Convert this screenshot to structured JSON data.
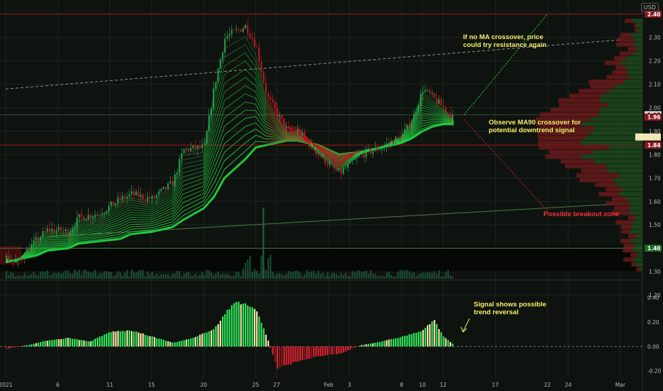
{
  "currency": "USD",
  "colors": {
    "background": "#0f130f",
    "grid": "#1d251d",
    "text": "#b8bcb8",
    "bull": "#2ee65a",
    "bear": "#d8222f",
    "ribbon_green": "#22d040",
    "ribbon_red": "#c0101c",
    "support": "#7a1618",
    "volume": "#1f5a3a",
    "annotation_yellow": "#f6ef6a",
    "annotation_red": "#ff2f3a",
    "hist_pale": "#f4e6a6"
  },
  "annotations": {
    "resistance": "If no MA crossover, price\ncould try resistance again",
    "ma90": "Observe MA90 crossover for\npotential downtrend signal",
    "breakout": "Possible breakout zone",
    "signal": "Signal shows possible\ntrend reversal"
  },
  "price_scale_labels": [
    "2.40",
    "2.30",
    "2.20",
    "2.10",
    "2.00",
    "1.90",
    "1.80",
    "1.70",
    "1.60",
    "1.50",
    "1.40",
    "1.30",
    "1.20"
  ],
  "price_markers": [
    {
      "value": 2.4,
      "label": "2.40",
      "style": "red"
    },
    {
      "value": 1.97,
      "label": "1.97",
      "style": "neutral"
    },
    {
      "value": 1.96,
      "label": "1.96",
      "style": "red"
    },
    {
      "value": 1.84,
      "label": "1.84",
      "style": "red"
    },
    {
      "value": 1.4,
      "label": "1.40",
      "style": "green"
    }
  ],
  "oscillator_scale_labels": [
    "0.40",
    "0.20",
    "0.00",
    "-0.20"
  ],
  "time_labels": [
    {
      "date": "2021-01-01",
      "label": "2021"
    },
    {
      "date": "2021-01-06",
      "label": "6"
    },
    {
      "date": "2021-01-11",
      "label": "11"
    },
    {
      "date": "2021-01-15",
      "label": "15"
    },
    {
      "date": "2021-01-20",
      "label": "20"
    },
    {
      "date": "2021-01-25",
      "label": "25"
    },
    {
      "date": "2021-01-27",
      "label": "27"
    },
    {
      "date": "2021-02-01",
      "label": "Feb"
    },
    {
      "date": "2021-02-03",
      "label": "3"
    },
    {
      "date": "2021-02-08",
      "label": "8"
    },
    {
      "date": "2021-02-10",
      "label": "10"
    },
    {
      "date": "2021-02-12",
      "label": "12"
    },
    {
      "date": "2021-02-17",
      "label": "17"
    },
    {
      "date": "2021-02-22",
      "label": "22"
    },
    {
      "date": "2021-02-24",
      "label": "24"
    },
    {
      "date": "2021-03-01",
      "label": "Mar"
    }
  ],
  "chart_data": [
    {
      "type": "line",
      "title": "",
      "ylabel": "",
      "ylim": [
        1.27,
        2.46
      ],
      "xlim": [
        "2021-01-01",
        "2021-03-01"
      ],
      "x": [
        "2021-01-01",
        "2021-01-02",
        "2021-01-04",
        "2021-01-05",
        "2021-01-07",
        "2021-01-08",
        "2021-01-10",
        "2021-01-12",
        "2021-01-13",
        "2021-01-15",
        "2021-01-17",
        "2021-01-18",
        "2021-01-20",
        "2021-01-21",
        "2021-01-22",
        "2021-01-24",
        "2021-01-25",
        "2021-01-26",
        "2021-01-28",
        "2021-01-29",
        "2021-01-31",
        "2021-02-02",
        "2021-02-04",
        "2021-02-06",
        "2021-02-08",
        "2021-02-09",
        "2021-02-10",
        "2021-02-11",
        "2021-02-12",
        "2021-02-13"
      ],
      "series": [
        {
          "values": [
            1.36,
            1.34,
            1.44,
            1.48,
            1.47,
            1.53,
            1.55,
            1.61,
            1.63,
            1.61,
            1.68,
            1.82,
            1.83,
            2.1,
            2.3,
            2.35,
            2.26,
            2.05,
            1.9,
            1.9,
            1.8,
            1.72,
            1.8,
            1.83,
            1.88,
            1.95,
            2.08,
            2.04,
            2.0,
            1.95
          ]
        },
        {
          "values": [
            1.34,
            1.35,
            1.37,
            1.39,
            1.4,
            1.42,
            1.43,
            1.44,
            1.46,
            1.47,
            1.49,
            1.52,
            1.57,
            1.62,
            1.7,
            1.78,
            1.83,
            1.84,
            1.86,
            1.86,
            1.84,
            1.8,
            1.81,
            1.83,
            1.85,
            1.87,
            1.9,
            1.92,
            1.93,
            1.93
          ]
        }
      ],
      "levels": [
        {
          "value": 2.4
        },
        {
          "value": 1.84
        },
        {
          "value": 1.4
        }
      ],
      "trendlines": [
        {
          "from": [
            "2021-01-01",
            2.08
          ],
          "to": [
            "2021-03-01",
            2.29
          ]
        },
        {
          "from": [
            "2021-01-05",
            1.45
          ],
          "to": [
            "2021-03-01",
            1.59
          ]
        }
      ]
    },
    {
      "type": "bar",
      "title": "",
      "ylim": [
        -0.26,
        0.52
      ],
      "x": [
        "2021-01-01",
        "2021-01-03",
        "2021-01-05",
        "2021-01-07",
        "2021-01-09",
        "2021-01-11",
        "2021-01-13",
        "2021-01-15",
        "2021-01-17",
        "2021-01-19",
        "2021-01-21",
        "2021-01-23",
        "2021-01-25",
        "2021-01-26",
        "2021-01-27",
        "2021-01-29",
        "2021-01-31",
        "2021-02-02",
        "2021-02-04",
        "2021-02-06",
        "2021-02-08",
        "2021-02-10",
        "2021-02-11",
        "2021-02-12",
        "2021-02-13"
      ],
      "values": [
        -0.02,
        0.01,
        0.05,
        0.07,
        0.04,
        0.12,
        0.13,
        0.08,
        0.03,
        0.07,
        0.15,
        0.38,
        0.3,
        0.08,
        -0.18,
        -0.12,
        -0.08,
        -0.06,
        0.01,
        0.04,
        0.08,
        0.13,
        0.22,
        0.08,
        0.01
      ]
    }
  ]
}
